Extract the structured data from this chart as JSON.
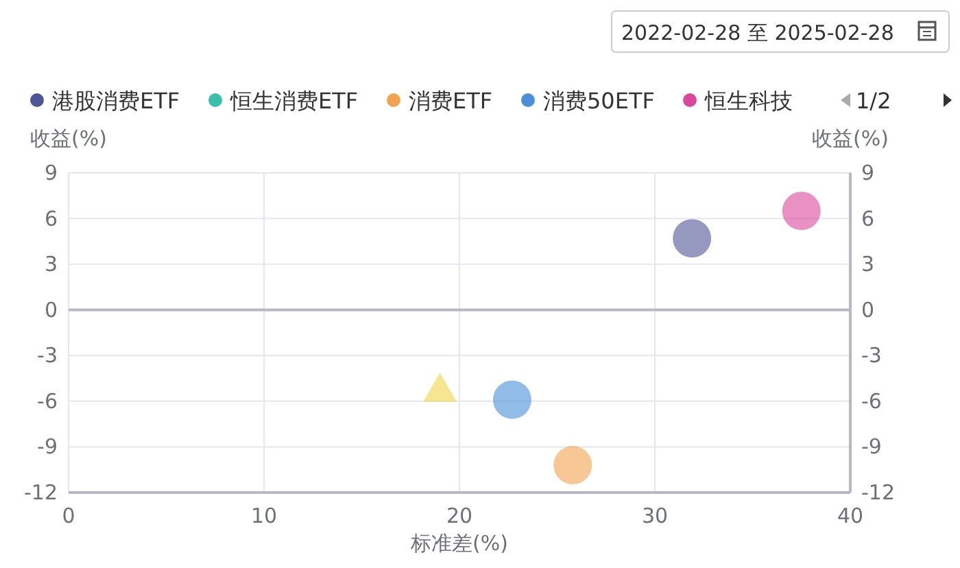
{
  "chart_data": {
    "type": "bubble",
    "xlabel": "标准差(%)",
    "ylabel": "收益(%)",
    "y2label": "收益(%)",
    "annotations": [
      "2022-02-28 至 2025-02-28",
      "1/2"
    ],
    "xlim": [
      0,
      40
    ],
    "xticks": [
      0,
      10,
      20,
      30,
      40
    ],
    "ylim": [
      -12,
      9
    ],
    "yticks": [
      -12,
      -9,
      -6,
      -3,
      0,
      3,
      6,
      9
    ],
    "y2lim": [
      -12,
      9
    ],
    "y2ticks": [
      -12,
      -9,
      -6,
      -3,
      0,
      3,
      6,
      9
    ],
    "grid": true,
    "legend": "top",
    "marker": "circle",
    "series": [
      {
        "name": "港股消费ETF",
        "color": "#4e5595",
        "x": [
          31.9
        ],
        "values": [
          4.7
        ]
      },
      {
        "name": "恒生消费ETF",
        "color": "#3bbfad"
      },
      {
        "name": "消费ETF",
        "color": "#f2a34f",
        "x": [
          25.8
        ],
        "values": [
          -10.2
        ]
      },
      {
        "name": "消费50ETF",
        "color": "#4a8fd8",
        "x": [
          22.7
        ],
        "values": [
          -5.9
        ]
      },
      {
        "name": "恒生科技",
        "color": "#d9489a",
        "x": [
          37.5
        ],
        "values": [
          6.5
        ]
      },
      {
        "type": "scatter",
        "marker": "triangle",
        "color": "#f0d54a",
        "x": [
          19.0
        ],
        "values": [
          -5.4
        ]
      }
    ]
  }
}
